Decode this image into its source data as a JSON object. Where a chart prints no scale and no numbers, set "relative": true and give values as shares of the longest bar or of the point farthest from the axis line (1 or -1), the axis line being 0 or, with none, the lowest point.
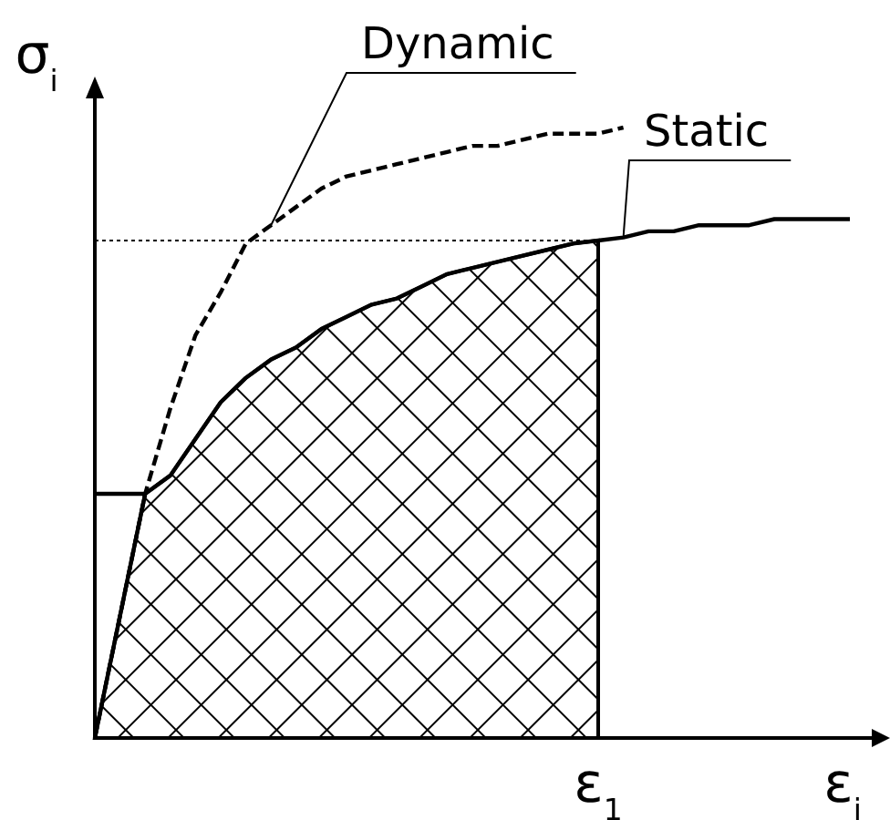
{
  "chart_data": {
    "type": "line",
    "relative": true,
    "legend": false,
    "xlabel": "ε$_{i}$",
    "ylabel": "σ$_{i}$",
    "categories": [
      null,
      null,
      null,
      null,
      null,
      null,
      null,
      null,
      null,
      null,
      null,
      null,
      null,
      null,
      null,
      null,
      null,
      null,
      null,
      null,
      null,
      null,
      null,
      null,
      null,
      null,
      null,
      null,
      null,
      null,
      null
    ],
    "annotations": [
      "ε$_{1}$"
    ],
    "series": [
      {
        "name": "Static",
        "color": "#000000",
        "line_style": "solid",
        "values": [
          0,
          0.2,
          0.4,
          0.43,
          0.49,
          0.55,
          0.59,
          0.62,
          0.64,
          0.67,
          0.69,
          0.71,
          0.72,
          0.74,
          0.76,
          0.77,
          0.78,
          0.79,
          0.8,
          0.81,
          0.815,
          0.82,
          0.83,
          0.83,
          0.84,
          0.84,
          0.84,
          0.85,
          0.85,
          0.85,
          0.85
        ]
      },
      {
        "name": "Dynamic",
        "color": "#000000",
        "line_style": "dashed",
        "values": [
          0,
          0.2,
          0.4,
          0.54,
          0.66,
          0.73,
          0.81,
          0.84,
          0.87,
          0.9,
          0.92,
          0.93,
          0.94,
          0.95,
          0.96,
          0.97,
          0.97,
          0.98,
          0.99,
          0.99,
          0.99,
          1,
          null,
          null,
          null,
          null,
          null,
          null,
          null,
          null,
          null
        ]
      },
      {
        "type": "area",
        "color": "#000000",
        "values": [
          0,
          0.2,
          0.4,
          0.43,
          0.49,
          0.55,
          0.59,
          0.62,
          0.64,
          0.67,
          0.69,
          0.71,
          0.72,
          0.74,
          0.76,
          0.77,
          0.78,
          0.79,
          0.8,
          0.81,
          0.815,
          null,
          null,
          null,
          null,
          null,
          null,
          null,
          null,
          null,
          null
        ]
      },
      {
        "color": "#000000",
        "line_style": "dotted",
        "values": [
          0.815,
          0.815,
          0.815,
          0.815,
          0.815,
          0.815,
          0.815,
          0.815,
          0.815,
          0.815,
          0.815,
          0.815,
          0.815,
          0.815,
          0.815,
          0.815,
          0.815,
          0.815,
          0.815,
          0.815,
          0.815,
          null,
          null,
          null,
          null,
          null,
          null,
          null,
          null,
          null,
          null
        ]
      },
      {
        "color": "#000000",
        "line_style": "solid",
        "values": [
          0.4,
          0.4,
          0.4,
          null,
          null,
          null,
          null,
          null,
          null,
          null,
          null,
          null,
          null,
          null,
          null,
          null,
          null,
          null,
          null,
          null,
          null,
          null,
          null,
          null,
          null,
          null,
          null,
          null,
          null,
          null,
          null
        ]
      }
    ]
  }
}
